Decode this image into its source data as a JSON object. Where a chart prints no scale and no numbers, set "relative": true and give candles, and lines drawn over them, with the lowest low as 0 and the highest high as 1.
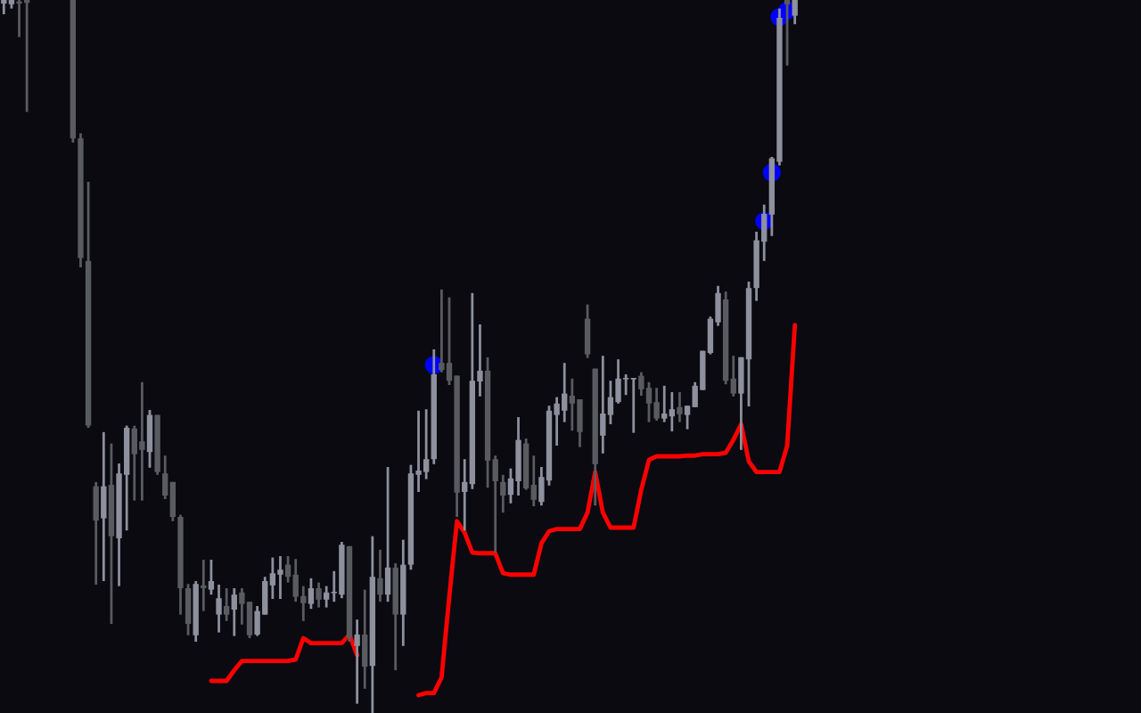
{
  "chart_data": {
    "type": "candlestick",
    "relative": true,
    "categories": [
      null,
      null,
      null,
      null,
      null,
      null,
      null,
      null,
      null,
      null,
      null,
      null,
      null,
      null,
      null,
      null,
      null,
      null,
      null,
      null,
      null,
      null,
      null,
      null,
      null,
      null,
      null,
      null,
      null,
      null,
      null,
      null,
      null,
      null,
      null,
      null,
      null,
      null,
      null,
      null,
      null,
      null,
      null,
      null,
      null,
      null,
      null,
      null,
      null,
      null,
      null,
      null,
      null,
      null,
      null,
      null,
      null,
      null,
      null,
      null,
      null,
      null,
      null,
      null,
      null,
      null,
      null,
      null,
      null,
      null,
      null,
      null,
      null,
      null,
      null,
      null,
      null,
      null,
      null,
      null,
      null,
      null,
      null,
      null,
      null,
      null,
      null,
      null,
      null,
      null,
      null,
      null,
      null,
      null,
      null,
      null,
      null,
      null,
      null,
      null,
      null,
      null,
      null,
      null
    ],
    "ohlc": [
      [
        0.995,
        1,
        0.98,
        1
      ],
      [
        0.994,
        1,
        0.988,
        1
      ],
      [
        0.998,
        1,
        0.948,
        0.995
      ],
      [
        1,
        1,
        0.843,
        0.996
      ],
      null,
      null,
      null,
      null,
      null,
      [
        1,
        1,
        0.8,
        0.806
      ],
      [
        0.806,
        0.813,
        0.625,
        0.638
      ],
      [
        0.634,
        0.745,
        0.4,
        0.403
      ],
      [
        0.318,
        0.324,
        0.18,
        0.27
      ],
      [
        0.273,
        0.394,
        0.185,
        0.318
      ],
      [
        0.32,
        0.378,
        0.125,
        0.248
      ],
      [
        0.245,
        0.35,
        0.178,
        0.336
      ],
      [
        0.334,
        0.403,
        0.256,
        0.4
      ],
      [
        0.399,
        0.403,
        0.298,
        0.363
      ],
      [
        0.381,
        0.464,
        0.298,
        0.369
      ],
      [
        0.366,
        0.425,
        0.344,
        0.418
      ],
      [
        0.418,
        0.418,
        0.334,
        0.338
      ],
      [
        0.336,
        0.361,
        0.3,
        0.305
      ],
      [
        0.324,
        0.324,
        0.269,
        0.275
      ],
      [
        0.275,
        0.278,
        0.138,
        0.175
      ],
      [
        0.175,
        0.181,
        0.109,
        0.125
      ],
      [
        0.109,
        0.185,
        0.1,
        0.181
      ],
      [
        0.179,
        0.215,
        0.143,
        0.175
      ],
      [
        0.173,
        0.215,
        0.166,
        0.185
      ],
      [
        0.138,
        0.18,
        0.113,
        0.161
      ],
      [
        0.15,
        0.175,
        0.129,
        0.138
      ],
      [
        0.145,
        0.175,
        0.108,
        0.166
      ],
      [
        0.169,
        0.175,
        0.124,
        0.153
      ],
      [
        0.156,
        0.156,
        0.105,
        0.109
      ],
      [
        0.11,
        0.15,
        0.108,
        0.143
      ],
      [
        0.138,
        0.191,
        0.138,
        0.185
      ],
      [
        0.179,
        0.218,
        0.16,
        0.196
      ],
      [
        0.194,
        0.22,
        0.16,
        0.201
      ],
      [
        0.208,
        0.22,
        0.183,
        0.191
      ],
      [
        0.194,
        0.216,
        0.156,
        0.163
      ],
      [
        0.164,
        0.178,
        0.129,
        0.154
      ],
      [
        0.153,
        0.189,
        0.146,
        0.175
      ],
      [
        0.175,
        0.183,
        0.148,
        0.159
      ],
      [
        0.159,
        0.178,
        0.148,
        0.169
      ],
      [
        0.168,
        0.199,
        0.156,
        0.169
      ],
      [
        0.166,
        0.24,
        0.161,
        0.236
      ],
      [
        0.234,
        0.234,
        0.1,
        0.106
      ],
      [
        0.094,
        0.131,
        0.013,
        0.11
      ],
      [
        0.11,
        0.173,
        0.034,
        0.065
      ],
      [
        0.066,
        0.248,
        0,
        0.191
      ],
      [
        0.189,
        0.229,
        0.156,
        0.166
      ],
      [
        0.166,
        0.345,
        0.156,
        0.204
      ],
      [
        0.204,
        0.21,
        0.06,
        0.138
      ],
      [
        0.138,
        0.243,
        0.094,
        0.208
      ],
      [
        0.208,
        0.348,
        0.201,
        0.336
      ],
      [
        0.334,
        0.424,
        0.31,
        0.34
      ],
      [
        0.338,
        0.426,
        0.328,
        0.356
      ],
      [
        0.356,
        0.51,
        0.349,
        0.475
      ],
      [
        0.491,
        0.594,
        0.478,
        0.481
      ],
      [
        0.491,
        0.583,
        0.46,
        0.466
      ],
      [
        0.473,
        0.473,
        0.275,
        0.309
      ],
      [
        0.31,
        0.356,
        0.256,
        0.324
      ],
      [
        0.321,
        0.589,
        0.314,
        0.466
      ],
      [
        0.465,
        0.545,
        0.444,
        0.48
      ],
      [
        0.48,
        0.499,
        0.316,
        0.354
      ],
      [
        0.356,
        0.361,
        0.225,
        0.325
      ],
      [
        0.324,
        0.334,
        0.281,
        0.305
      ],
      [
        0.306,
        0.343,
        0.294,
        0.329
      ],
      [
        0.325,
        0.415,
        0.305,
        0.383
      ],
      [
        0.378,
        0.385,
        0.313,
        0.315
      ],
      [
        0.32,
        0.361,
        0.29,
        0.299
      ],
      [
        0.296,
        0.345,
        0.291,
        0.331
      ],
      [
        0.326,
        0.431,
        0.319,
        0.424
      ],
      [
        0.418,
        0.443,
        0.375,
        0.434
      ],
      [
        0.424,
        0.491,
        0.408,
        0.448
      ],
      [
        0.445,
        0.469,
        0.396,
        0.434
      ],
      [
        0.44,
        0.44,
        0.373,
        0.394
      ],
      [
        0.553,
        0.573,
        0.498,
        0.503
      ],
      [
        0.483,
        0.483,
        0.291,
        0.349
      ],
      [
        0.389,
        0.501,
        0.364,
        0.42
      ],
      [
        0.418,
        0.466,
        0.405,
        0.443
      ],
      [
        0.436,
        0.496,
        0.434,
        0.469
      ],
      [
        0.468,
        0.475,
        0.446,
        0.469
      ],
      [
        0.468,
        0.469,
        0.393,
        0.469
      ],
      [
        0.473,
        0.478,
        0.445,
        0.454
      ],
      [
        0.456,
        0.464,
        0.408,
        0.434
      ],
      [
        0.436,
        0.456,
        0.41,
        0.413
      ],
      [
        0.413,
        0.459,
        0.408,
        0.42
      ],
      [
        0.416,
        0.45,
        0.395,
        0.426
      ],
      [
        0.429,
        0.45,
        0.408,
        0.419
      ],
      [
        0.418,
        0.431,
        0.398,
        0.431
      ],
      [
        0.429,
        0.464,
        0.429,
        0.459
      ],
      [
        0.453,
        0.508,
        0.453,
        0.508
      ],
      [
        0.505,
        0.556,
        0.503,
        0.553
      ],
      [
        0.548,
        0.599,
        0.543,
        0.589
      ],
      [
        0.58,
        0.591,
        0.461,
        0.466
      ],
      [
        0.469,
        0.501,
        0.444,
        0.448
      ],
      [
        0.448,
        0.499,
        0.369,
        0.499
      ],
      [
        0.496,
        0.605,
        0.43,
        0.596
      ],
      [
        0.596,
        0.675,
        0.578,
        0.663
      ],
      [
        0.661,
        0.713,
        0.634,
        0.7
      ],
      [
        0.699,
        0.78,
        0.669,
        0.778
      ],
      [
        0.773,
        0.988,
        0.768,
        0.975
      ],
      [
        1,
        1,
        0.908,
        0.994
      ],
      [
        0.978,
        1,
        0.966,
        1
      ]
    ],
    "colors": [
      "#8e909e",
      "#8e909e",
      "#5a5b60",
      "#5a5b60",
      null,
      null,
      null,
      null,
      null,
      "#5a5b60",
      "#5a5b60",
      "#5a5b60",
      "#5a5b60",
      "#8e909e",
      "#5a5b60",
      "#8e909e",
      "#8e909e",
      "#5a5b60",
      "#5a5b60",
      "#8e909e",
      "#5a5b60",
      "#5a5b60",
      "#5a5b60",
      "#5a5b60",
      "#5a5b60",
      "#8e909e",
      "#5a5b60",
      "#8e909e",
      "#8e909e",
      "#5a5b60",
      "#8e909e",
      "#5a5b60",
      "#5a5b60",
      "#8e909e",
      "#8e909e",
      "#8e909e",
      "#8e909e",
      "#5a5b60",
      "#5a5b60",
      "#5a5b60",
      "#8e909e",
      "#5a5b60",
      "#8e909e",
      "#8e909e",
      "#8e909e",
      "#5a5b60",
      "#8e909e",
      "#5a5b60",
      "#8e909e",
      "#5a5b60",
      "#8e909e",
      "#5a5b60",
      "#8e909e",
      "#8e909e",
      "#8e909e",
      "#8e909e",
      "#8e909e",
      "#5a5b60",
      "#5a5b60",
      "#5a5b60",
      "#8e909e",
      "#8e909e",
      "#8e909e",
      "#5a5b60",
      "#5a5b60",
      "#5a5b60",
      "#8e909e",
      "#8e909e",
      "#5a5b60",
      "#5a5b60",
      "#8e909e",
      "#8e909e",
      "#8e909e",
      "#8e909e",
      "#5a5b60",
      "#5a5b60",
      "#5a5b60",
      "#5a5b60",
      "#8e909e",
      "#8e909e",
      "#8e909e",
      "#8e909e",
      "#8e909e",
      "#5a5b60",
      "#5a5b60",
      "#5a5b60",
      "#8e909e",
      "#8e909e",
      "#5a5b60",
      "#8e909e",
      "#8e909e",
      "#8e909e",
      "#8e909e",
      "#8e909e",
      "#5a5b60",
      "#5a5b60",
      "#8e909e",
      "#8e909e",
      "#8e909e",
      "#8e909e",
      "#8e909e",
      "#8e909e",
      "#5a5b60",
      "#8e909e"
    ],
    "series": [
      {
        "type": "line",
        "color": "#ff0000",
        "line_style": "solid",
        "values": [
          null,
          null,
          null,
          null,
          null,
          null,
          null,
          null,
          null,
          null,
          null,
          null,
          null,
          null,
          null,
          null,
          null,
          null,
          null,
          null,
          null,
          null,
          null,
          null,
          null,
          null,
          null,
          0.045,
          0.045,
          0.045,
          0.06,
          0.073,
          0.073,
          0.073,
          0.073,
          0.073,
          0.073,
          0.073,
          0.075,
          0.105,
          0.098,
          0.098,
          0.098,
          0.098,
          0.098,
          0.11,
          0.081,
          null,
          null,
          null,
          null,
          null,
          null,
          null,
          0.025,
          0.028,
          0.028,
          0.05,
          0.163,
          0.269,
          0.253,
          0.225,
          0.224,
          0.224,
          0.224,
          0.196,
          0.194,
          0.194,
          0.194,
          0.194,
          0.238,
          0.255,
          0.258,
          0.258,
          0.258,
          0.258,
          0.281,
          0.338,
          0.281,
          0.26,
          0.26,
          0.26,
          0.26,
          0.313,
          0.355,
          0.36,
          0.36,
          0.36,
          0.36,
          0.361,
          0.361,
          0.363,
          0.363,
          0.363,
          0.365,
          0.383,
          0.405,
          0.353,
          0.338,
          0.338,
          0.338,
          0.338,
          0.375,
          0.544
        ]
      },
      {
        "type": "scatter",
        "color": "#0000ff",
        "marker": "circle",
        "values": [
          null,
          null,
          null,
          null,
          null,
          null,
          null,
          null,
          null,
          null,
          null,
          null,
          null,
          null,
          null,
          null,
          null,
          null,
          null,
          null,
          null,
          null,
          null,
          null,
          null,
          null,
          null,
          null,
          null,
          null,
          null,
          null,
          null,
          null,
          null,
          null,
          null,
          null,
          null,
          null,
          null,
          null,
          null,
          null,
          null,
          null,
          null,
          null,
          null,
          null,
          null,
          null,
          null,
          null,
          null,
          null,
          0.488,
          null,
          null,
          null,
          null,
          null,
          null,
          null,
          null,
          null,
          null,
          null,
          null,
          null,
          null,
          null,
          null,
          null,
          null,
          null,
          null,
          null,
          null,
          null,
          null,
          null,
          null,
          null,
          null,
          null,
          null,
          null,
          null,
          null,
          null,
          null,
          null,
          null,
          null,
          null,
          null,
          null,
          null,
          0.69,
          0.758,
          0.976,
          0.985,
          null
        ]
      }
    ]
  }
}
